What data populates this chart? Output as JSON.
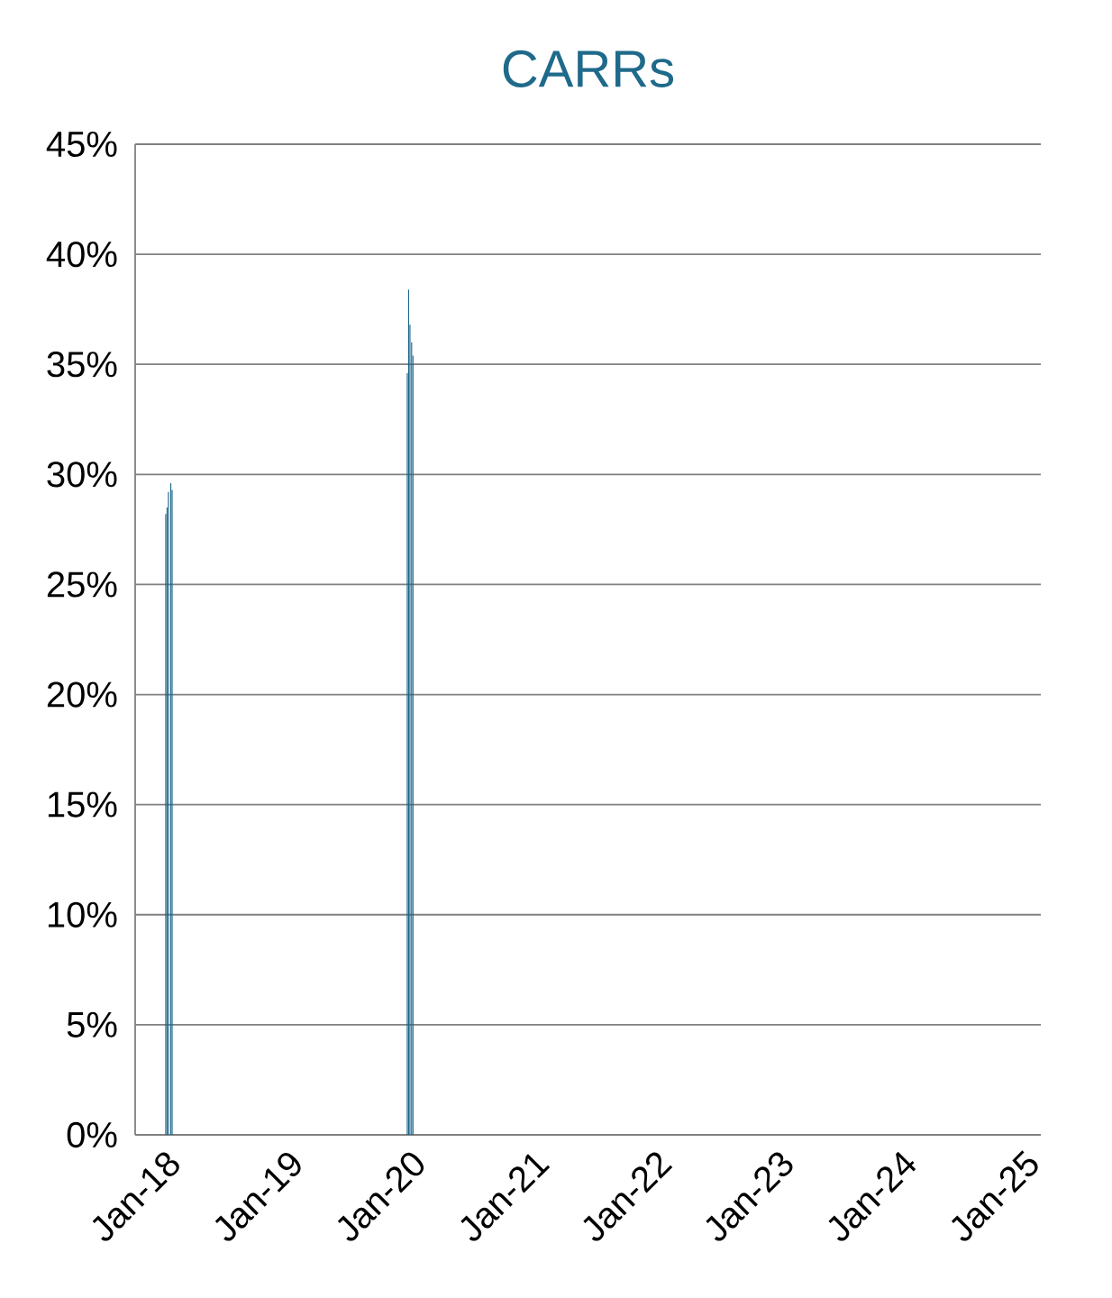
{
  "chart_data": {
    "type": "bar",
    "title": "CARRs",
    "x": [
      "2018-04-02",
      "2018-04-06",
      "2018-04-10",
      "2018-04-17",
      "2018-04-21",
      "2020-03-21",
      "2020-03-25",
      "2020-03-29",
      "2020-04-03",
      "2020-04-07"
    ],
    "values": [
      28.2,
      28.5,
      29.2,
      29.6,
      29.3,
      34.6,
      38.4,
      36.8,
      36.0,
      35.4
    ],
    "color": "#1b6489",
    "xlim": [
      "2018-01-01",
      "2025-05-20"
    ],
    "xticks": [
      {
        "value": "2018-01-01",
        "label": "Jan-18"
      },
      {
        "value": "2019-01-01",
        "label": "Jan-19"
      },
      {
        "value": "2020-01-01",
        "label": "Jan-20"
      },
      {
        "value": "2021-01-01",
        "label": "Jan-21"
      },
      {
        "value": "2022-01-01",
        "label": "Jan-22"
      },
      {
        "value": "2023-01-01",
        "label": "Jan-23"
      },
      {
        "value": "2024-01-01",
        "label": "Jan-24"
      },
      {
        "value": "2025-01-01",
        "label": "Jan-25"
      }
    ],
    "ylim": [
      0,
      45
    ],
    "yticks": [
      {
        "value": 0,
        "label": "0%"
      },
      {
        "value": 5,
        "label": "5%"
      },
      {
        "value": 10,
        "label": "10%"
      },
      {
        "value": 15,
        "label": "15%"
      },
      {
        "value": 20,
        "label": "20%"
      },
      {
        "value": 25,
        "label": "25%"
      },
      {
        "value": 30,
        "label": "30%"
      },
      {
        "value": 35,
        "label": "35%"
      },
      {
        "value": 40,
        "label": "40%"
      },
      {
        "value": 45,
        "label": "45%"
      }
    ],
    "grid": "y"
  }
}
